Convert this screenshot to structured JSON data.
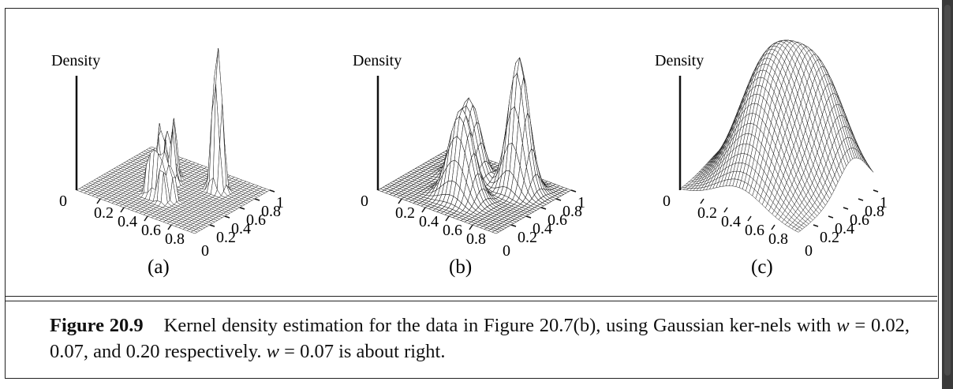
{
  "figure": {
    "panels": [
      {
        "id": "a",
        "label": "(a)",
        "z_label": "Density",
        "x_ticks": [
          "0",
          "0.2",
          "0.4",
          "0.6",
          "0.8"
        ],
        "y_ticks": [
          "0",
          "0.2",
          "0.4",
          "0.6",
          "0.8",
          "1"
        ]
      },
      {
        "id": "b",
        "label": "(b)",
        "z_label": "Density",
        "x_ticks": [
          "0",
          "0.2",
          "0.4",
          "0.6",
          "0.8"
        ],
        "y_ticks": [
          "0",
          "0.2",
          "0.4",
          "0.6",
          "0.8",
          "1"
        ]
      },
      {
        "id": "c",
        "label": "(c)",
        "z_label": "Density",
        "x_ticks": [
          "0",
          "0.2",
          "0.4",
          "0.6",
          "0.8"
        ],
        "y_ticks": [
          "0",
          "0.2",
          "0.4",
          "0.6",
          "0.8",
          "1"
        ]
      }
    ],
    "caption": {
      "number": "Figure 20.9",
      "text_1": "Kernel density estimation for the data in Figure 20.7(b), using Gaussian ker-nels with ",
      "w_symbol": "w",
      "eq_1": " = 0.02, 0.07, and 0.20 respectively. ",
      "w_symbol_2": "w",
      "eq_2": " = 0.07 is about right."
    }
  },
  "chart_data": [
    {
      "type": "surface",
      "panel": "(a)",
      "kernel": "Gaussian",
      "w": 0.02,
      "zlabel": "Density",
      "xlim": [
        0,
        1
      ],
      "ylim": [
        0,
        1
      ]
    },
    {
      "type": "surface",
      "panel": "(b)",
      "kernel": "Gaussian",
      "w": 0.07,
      "zlabel": "Density",
      "xlim": [
        0,
        1
      ],
      "ylim": [
        0,
        1
      ]
    },
    {
      "type": "surface",
      "panel": "(c)",
      "kernel": "Gaussian",
      "w": 0.2,
      "zlabel": "Density",
      "xlim": [
        0,
        1
      ],
      "ylim": [
        0,
        1
      ]
    }
  ]
}
